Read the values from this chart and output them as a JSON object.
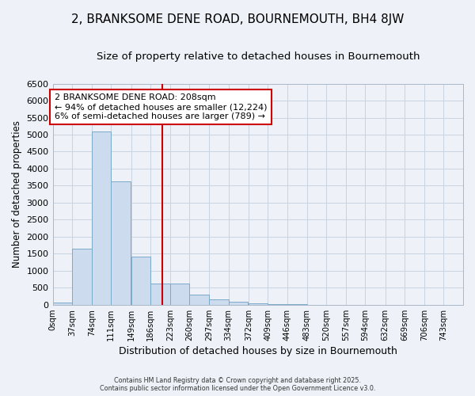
{
  "title": "2, BRANKSOME DENE ROAD, BOURNEMOUTH, BH4 8JW",
  "subtitle": "Size of property relative to detached houses in Bournemouth",
  "xlabel": "Distribution of detached houses by size in Bournemouth",
  "ylabel": "Number of detached properties",
  "bar_color": "#ccdcee",
  "bar_edge_color": "#7aaac8",
  "grid_color": "#c8d4e0",
  "background_color": "#eef2f8",
  "plot_bg_color": "#eef2f8",
  "vline_x": 208,
  "vline_color": "#cc0000",
  "bin_width": 37,
  "bin_starts": [
    0,
    37,
    74,
    111,
    149,
    186,
    223,
    260,
    297,
    334,
    372,
    409,
    446,
    483,
    520,
    557,
    594,
    632,
    669,
    706,
    743
  ],
  "bar_heights": [
    75,
    1650,
    5100,
    3620,
    1420,
    620,
    620,
    300,
    155,
    100,
    45,
    25,
    10,
    3,
    1,
    0,
    0,
    0,
    0,
    0
  ],
  "tick_labels": [
    "0sqm",
    "37sqm",
    "74sqm",
    "111sqm",
    "149sqm",
    "186sqm",
    "223sqm",
    "260sqm",
    "297sqm",
    "334sqm",
    "372sqm",
    "409sqm",
    "446sqm",
    "483sqm",
    "520sqm",
    "557sqm",
    "594sqm",
    "632sqm",
    "669sqm",
    "706sqm",
    "743sqm"
  ],
  "ylim": [
    0,
    6500
  ],
  "yticks": [
    0,
    500,
    1000,
    1500,
    2000,
    2500,
    3000,
    3500,
    4000,
    4500,
    5000,
    5500,
    6000,
    6500
  ],
  "annotation_title": "2 BRANKSOME DENE ROAD: 208sqm",
  "annotation_line1": "← 94% of detached houses are smaller (12,224)",
  "annotation_line2": "6% of semi-detached houses are larger (789) →",
  "annotation_box_color": "#ffffff",
  "annotation_box_edge": "#cc0000",
  "footer1": "Contains HM Land Registry data © Crown copyright and database right 2025.",
  "footer2": "Contains public sector information licensed under the Open Government Licence v3.0."
}
